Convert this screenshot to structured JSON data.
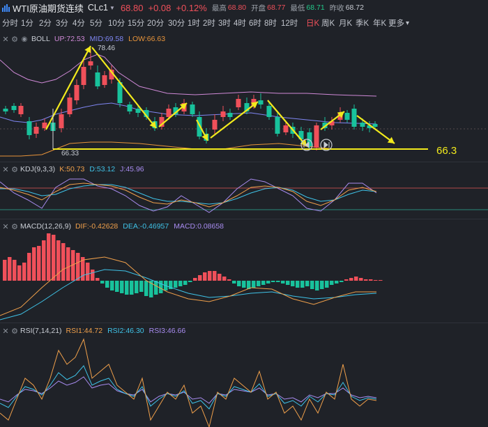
{
  "header": {
    "title": "WTI原油期货连续",
    "code": "CLc1",
    "last": "68.80",
    "change": "+0.08",
    "change_pct": "+0.12%",
    "high_label": "最高",
    "high": "68.80",
    "open_label": "开盘",
    "open": "68.77",
    "low_label": "最低",
    "low": "68.71",
    "prev_label": "昨收",
    "prev": "68.72"
  },
  "tabs": [
    {
      "label": "分时"
    },
    {
      "label": "1分"
    },
    {
      "label": "2分"
    },
    {
      "label": "3分"
    },
    {
      "label": "4分"
    },
    {
      "label": "5分"
    },
    {
      "label": "10分"
    },
    {
      "label": "15分"
    },
    {
      "label": "20分"
    },
    {
      "label": "30分"
    },
    {
      "label": "1时"
    },
    {
      "label": "2时"
    },
    {
      "label": "3时"
    },
    {
      "label": "4时"
    },
    {
      "label": "6时"
    },
    {
      "label": "8时"
    },
    {
      "label": "12时"
    },
    {
      "label": "日K",
      "active": true
    },
    {
      "label": "周K"
    },
    {
      "label": "月K"
    },
    {
      "label": "季K"
    },
    {
      "label": "年K"
    },
    {
      "label": "更多"
    }
  ],
  "boll": {
    "name": "BOLL",
    "up_label": "UP:",
    "up": "72.53",
    "mid_label": "MID:",
    "mid": "69.58",
    "low_label": "LOW:",
    "low": "66.63",
    "high_mark": "78.46",
    "low_mark": "66.33",
    "support_label": "66.3",
    "colors": {
      "up": "#d08ad8",
      "mid": "#7f86f2",
      "low": "#e8943a",
      "support": "#f2ea1c"
    }
  },
  "kdj": {
    "name": "KDJ(9,3,3)",
    "k_label": "K:",
    "k": "50.73",
    "d_label": "D:",
    "d": "53.12",
    "j_label": "J:",
    "j": "45.96",
    "colors": {
      "k": "#f0a04b",
      "d": "#3fc3e8",
      "j": "#a88cf0"
    }
  },
  "macd": {
    "name": "MACD(12,26,9)",
    "dif_label": "DIF:",
    "dif": "-0.42628",
    "dea_label": "DEA:",
    "dea": "-0.46957",
    "macd_label": "MACD:",
    "macd": "0.08658",
    "colors": {
      "dif": "#f0a04b",
      "dea": "#3fc3e8",
      "macd": "#a88cf0"
    }
  },
  "rsi": {
    "name": "RSI(7,14,21)",
    "r1_label": "RSI1:",
    "r1": "44.72",
    "r2_label": "RSI2:",
    "r2": "46.30",
    "r3_label": "RSI3:",
    "r3": "46.66",
    "colors": {
      "r1": "#f0a04b",
      "r2": "#3fc3e8",
      "r3": "#a88cf0"
    }
  },
  "colors": {
    "up": "#f0505a",
    "down": "#18c29c",
    "bg": "#1f2228"
  }
}
